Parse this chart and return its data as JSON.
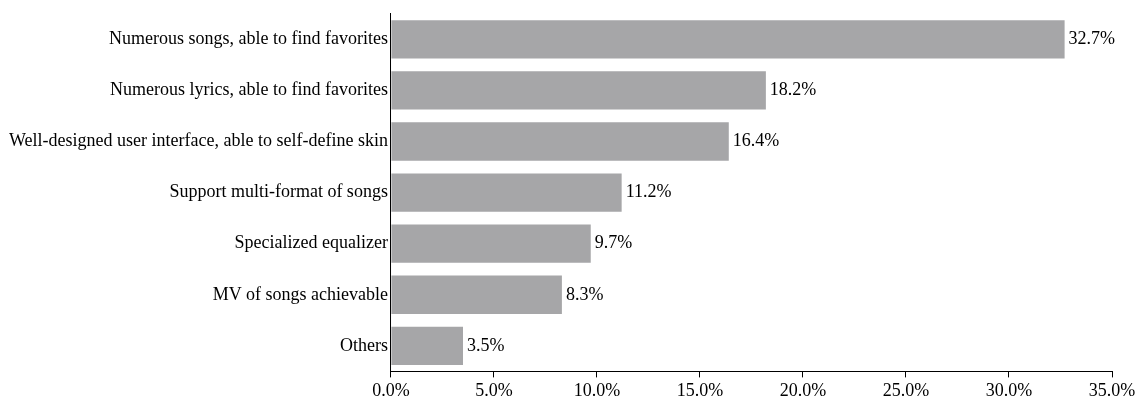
{
  "chart_data": {
    "type": "bar",
    "orientation": "horizontal",
    "categories": [
      "Numerous songs, able to find favorites",
      "Numerous lyrics, able to find favorites",
      "Well-designed user interface, able to self-define skin",
      "Support multi-format of songs",
      "Specialized equalizer",
      "MV of songs achievable",
      "Others"
    ],
    "values": [
      32.7,
      18.2,
      16.4,
      11.2,
      9.7,
      8.3,
      3.5
    ],
    "value_labels": [
      "32.7%",
      "18.2%",
      "16.4%",
      "11.2%",
      "9.7%",
      "8.3%",
      "3.5%"
    ],
    "color": "#a6a6a8",
    "xlim": [
      0,
      35
    ],
    "xticks": [
      {
        "value": 0,
        "label": "0.0%"
      },
      {
        "value": 5,
        "label": "5.0%"
      },
      {
        "value": 10,
        "label": "10.0%"
      },
      {
        "value": 15,
        "label": "15.0%"
      },
      {
        "value": 20,
        "label": "20.0%"
      },
      {
        "value": 25,
        "label": "25.0%"
      },
      {
        "value": 30,
        "label": "30.0%"
      },
      {
        "value": 35,
        "label": "35.0%"
      }
    ],
    "grid": false,
    "legend": false
  }
}
